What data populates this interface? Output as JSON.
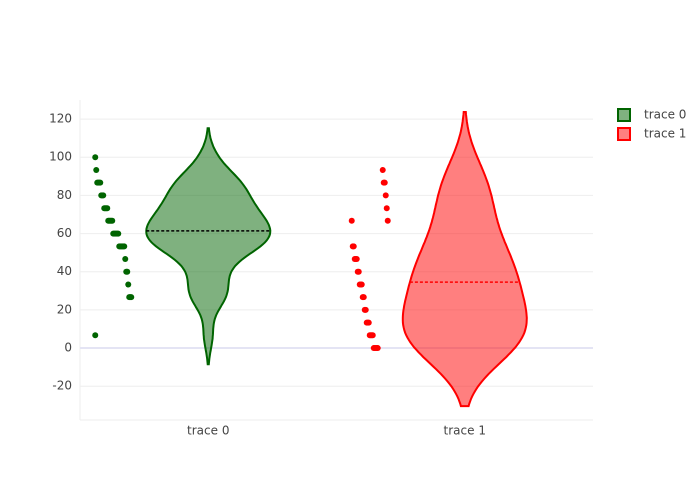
{
  "chart_data": {
    "type": "violin",
    "categories": [
      "trace 0",
      "trace 1"
    ],
    "series": [
      {
        "name": "trace 0",
        "color": "#006400",
        "values": [
          100,
          93.3,
          86.7,
          86.7,
          86.7,
          86.7,
          80,
          80,
          80,
          73.3,
          73.3,
          73.3,
          73.3,
          66.7,
          66.7,
          66.7,
          66.7,
          66.7,
          60,
          60,
          60,
          60,
          60,
          60,
          53.3,
          53.3,
          53.3,
          53.3,
          53.3,
          53.3,
          46.7,
          40,
          40,
          33.3,
          26.7,
          26.7,
          26.7,
          6.7
        ]
      },
      {
        "name": "trace 1",
        "color": "#ff0000",
        "values": [
          93.3,
          86.7,
          86.7,
          80,
          73.3,
          66.7,
          66.7,
          53.3,
          53.3,
          46.7,
          46.7,
          46.7,
          40,
          40,
          33.3,
          33.3,
          33.3,
          26.7,
          26.7,
          20,
          20,
          13.3,
          13.3,
          13.3,
          6.7,
          6.7,
          6.7,
          6.7,
          0,
          0,
          0,
          0,
          0
        ]
      }
    ],
    "ylim": [
      -37.7,
      130
    ],
    "yticks": [
      -20,
      0,
      20,
      40,
      60,
      80,
      100,
      120
    ],
    "grid": true
  }
}
